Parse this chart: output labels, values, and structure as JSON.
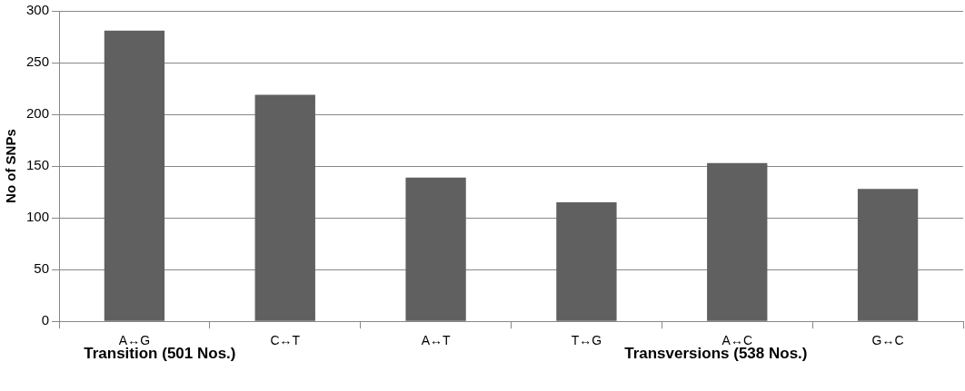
{
  "chart_data": {
    "type": "bar",
    "ylabel": "No of SNPs",
    "categories": [
      "A↔G",
      "C↔T",
      "A↔T",
      "T↔G",
      "A↔C",
      "G↔C"
    ],
    "values": [
      281,
      219,
      139,
      115,
      153,
      128
    ],
    "color": "#606060",
    "ylim": [
      0,
      300
    ],
    "yticks": [
      0,
      50,
      100,
      150,
      200,
      250,
      300
    ],
    "grid": "y",
    "legend": false,
    "annotations": [
      "Transition (501 Nos.)",
      "Transversions (538 Nos.)"
    ]
  }
}
